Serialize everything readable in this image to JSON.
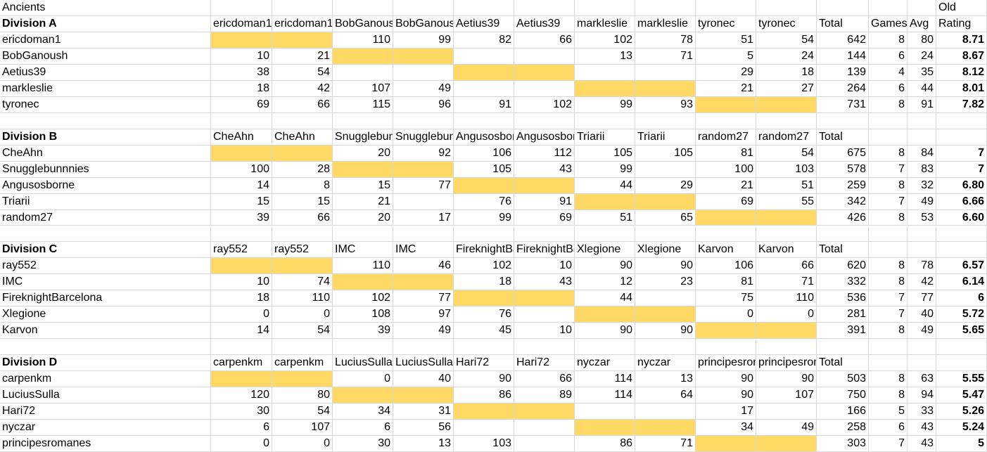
{
  "sheet_title": "Ancients",
  "rating_header_top": "Old",
  "columns": {
    "games": "Games",
    "avg": "Avg",
    "rating": "Rating"
  },
  "divisions": [
    {
      "title": "Division A",
      "headers": [
        "ericdoman1",
        "ericdoman1",
        "BobGanoush",
        "BobGanoush",
        "Aetius39",
        "Aetius39",
        "markleslie",
        "markleslie",
        "tyronec",
        "tyronec"
      ],
      "total_header": "Total",
      "rows": [
        {
          "name": "ericdoman1",
          "scores": [
            null,
            null,
            110,
            99,
            82,
            66,
            102,
            78,
            51,
            54
          ],
          "total": 642,
          "games": 8,
          "avg": 80,
          "rating": "8.71"
        },
        {
          "name": "BobGanoush",
          "scores": [
            10,
            21,
            null,
            null,
            null,
            null,
            13,
            71,
            5,
            24
          ],
          "total": 144,
          "games": 6,
          "avg": 24,
          "rating": "8.67"
        },
        {
          "name": "Aetius39",
          "scores": [
            38,
            54,
            null,
            null,
            null,
            null,
            null,
            null,
            29,
            18
          ],
          "total": 139,
          "games": 4,
          "avg": 35,
          "rating": "8.12"
        },
        {
          "name": "markleslie",
          "scores": [
            18,
            42,
            107,
            49,
            null,
            null,
            null,
            null,
            21,
            27
          ],
          "total": 264,
          "games": 6,
          "avg": 44,
          "rating": "8.01"
        },
        {
          "name": "tyronec",
          "scores": [
            69,
            66,
            115,
            96,
            91,
            102,
            99,
            93,
            null,
            null
          ],
          "total": 731,
          "games": 8,
          "avg": 91,
          "rating": "7.82"
        }
      ]
    },
    {
      "title": "Division B",
      "headers": [
        "CheAhn",
        "CheAhn",
        "Snugglebunnnies",
        "Snugglebunnnies",
        "Angusosborne",
        "Angusosborne",
        "Triarii",
        "Triarii",
        "random27",
        "random27"
      ],
      "total_header": "Total",
      "rows": [
        {
          "name": "CheAhn",
          "scores": [
            null,
            null,
            20,
            92,
            106,
            112,
            105,
            105,
            81,
            54
          ],
          "total": 675,
          "games": 8,
          "avg": 84,
          "rating": "7"
        },
        {
          "name": "Snugglebunnnies",
          "scores": [
            100,
            28,
            null,
            null,
            105,
            43,
            99,
            null,
            100,
            103
          ],
          "total": 578,
          "games": 7,
          "avg": 83,
          "rating": "7"
        },
        {
          "name": "Angusosborne",
          "scores": [
            14,
            8,
            15,
            77,
            null,
            null,
            44,
            29,
            21,
            51
          ],
          "total": 259,
          "games": 8,
          "avg": 32,
          "rating": "6.80"
        },
        {
          "name": "Triarii",
          "scores": [
            15,
            15,
            21,
            null,
            76,
            91,
            null,
            null,
            69,
            55
          ],
          "total": 342,
          "games": 7,
          "avg": 49,
          "rating": "6.66"
        },
        {
          "name": "random27",
          "scores": [
            39,
            66,
            20,
            17,
            99,
            69,
            51,
            65,
            null,
            null
          ],
          "total": 426,
          "games": 8,
          "avg": 53,
          "rating": "6.60"
        }
      ]
    },
    {
      "title": "Division C",
      "headers": [
        "ray552",
        "ray552",
        "IMC",
        "IMC",
        "FireknightBarcelona",
        "FireknightBarcelona",
        "Xlegione",
        "Xlegione",
        "Karvon",
        "Karvon"
      ],
      "total_header": "Total",
      "rows": [
        {
          "name": "ray552",
          "scores": [
            null,
            null,
            110,
            46,
            102,
            10,
            90,
            90,
            106,
            66
          ],
          "total": 620,
          "games": 8,
          "avg": 78,
          "rating": "6.57"
        },
        {
          "name": "IMC",
          "scores": [
            10,
            74,
            null,
            null,
            18,
            43,
            12,
            23,
            81,
            71
          ],
          "total": 332,
          "games": 8,
          "avg": 42,
          "rating": "6.14"
        },
        {
          "name": "FireknightBarcelona",
          "scores": [
            18,
            110,
            102,
            77,
            null,
            null,
            44,
            null,
            75,
            110
          ],
          "total": 536,
          "games": 7,
          "avg": 77,
          "rating": "6"
        },
        {
          "name": "Xlegione",
          "scores": [
            0,
            0,
            108,
            97,
            76,
            null,
            null,
            null,
            0,
            0
          ],
          "total": 281,
          "games": 7,
          "avg": 40,
          "rating": "5.72"
        },
        {
          "name": "Karvon",
          "scores": [
            14,
            54,
            39,
            49,
            45,
            10,
            90,
            90,
            null,
            null
          ],
          "total": 391,
          "games": 8,
          "avg": 49,
          "rating": "5.65"
        }
      ]
    },
    {
      "title": "Division D",
      "headers": [
        "carpenkm",
        "carpenkm",
        "LuciusSulla",
        "LuciusSulla",
        "Hari72",
        "Hari72",
        "nyczar",
        "nyczar",
        "principesromanes",
        "principesromanes"
      ],
      "total_header": "Total",
      "rows": [
        {
          "name": "carpenkm",
          "scores": [
            null,
            null,
            0,
            40,
            90,
            66,
            114,
            13,
            90,
            90
          ],
          "total": 503,
          "games": 8,
          "avg": 63,
          "rating": "5.55"
        },
        {
          "name": "LuciusSulla",
          "scores": [
            120,
            80,
            null,
            null,
            86,
            89,
            114,
            64,
            90,
            107
          ],
          "total": 750,
          "games": 8,
          "avg": 94,
          "rating": "5.47"
        },
        {
          "name": "Hari72",
          "scores": [
            30,
            54,
            34,
            31,
            null,
            null,
            null,
            null,
            17,
            null
          ],
          "total": 166,
          "games": 5,
          "avg": 33,
          "rating": "5.26"
        },
        {
          "name": "nyczar",
          "scores": [
            6,
            107,
            6,
            56,
            null,
            null,
            null,
            null,
            34,
            49
          ],
          "total": 258,
          "games": 6,
          "avg": 43,
          "rating": "5.24"
        },
        {
          "name": "principesromanes",
          "scores": [
            0,
            0,
            30,
            13,
            103,
            null,
            86,
            71,
            null,
            null
          ],
          "total": 303,
          "games": 7,
          "avg": 43,
          "rating": "5"
        }
      ]
    }
  ]
}
